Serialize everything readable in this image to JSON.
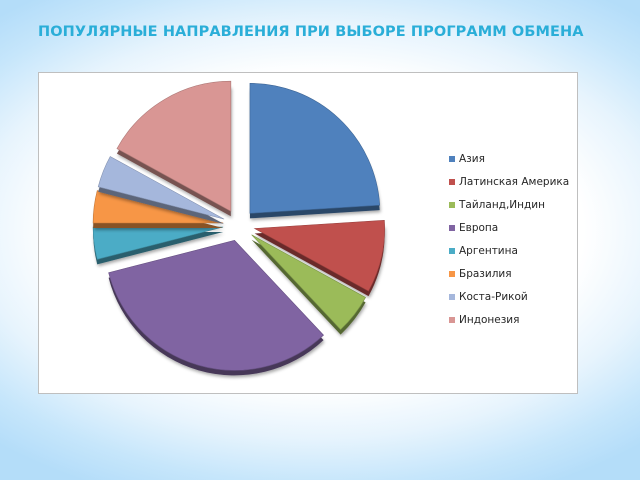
{
  "title": "ПОПУЛЯРНЫЕ НАПРАВЛЕНИЯ ПРИ ВЫБОРЕ ПРОГРАММ ОБМЕНА",
  "chart_data": {
    "type": "pie",
    "title": "",
    "exploded": true,
    "three_d": true,
    "legend_position": "right",
    "start_angle_deg": 0,
    "direction": "clockwise",
    "slices": [
      {
        "label": "Азия",
        "value": 24,
        "color": "#4f81bd"
      },
      {
        "label": "Латинская Америка",
        "value": 9,
        "color": "#c0504d"
      },
      {
        "label": "Тайланд,Индин",
        "value": 5,
        "color": "#9bbb59"
      },
      {
        "label": "Европа",
        "value": 33,
        "color": "#8064a2"
      },
      {
        "label": "Аргентина",
        "value": 4,
        "color": "#4bacc6"
      },
      {
        "label": "Бразилия",
        "value": 4,
        "color": "#f79646"
      },
      {
        "label": "Коста-Рикой",
        "value": 4,
        "color": "#a5b7dc"
      },
      {
        "label": "Индонезия",
        "value": 17,
        "color": "#d99694"
      }
    ]
  }
}
